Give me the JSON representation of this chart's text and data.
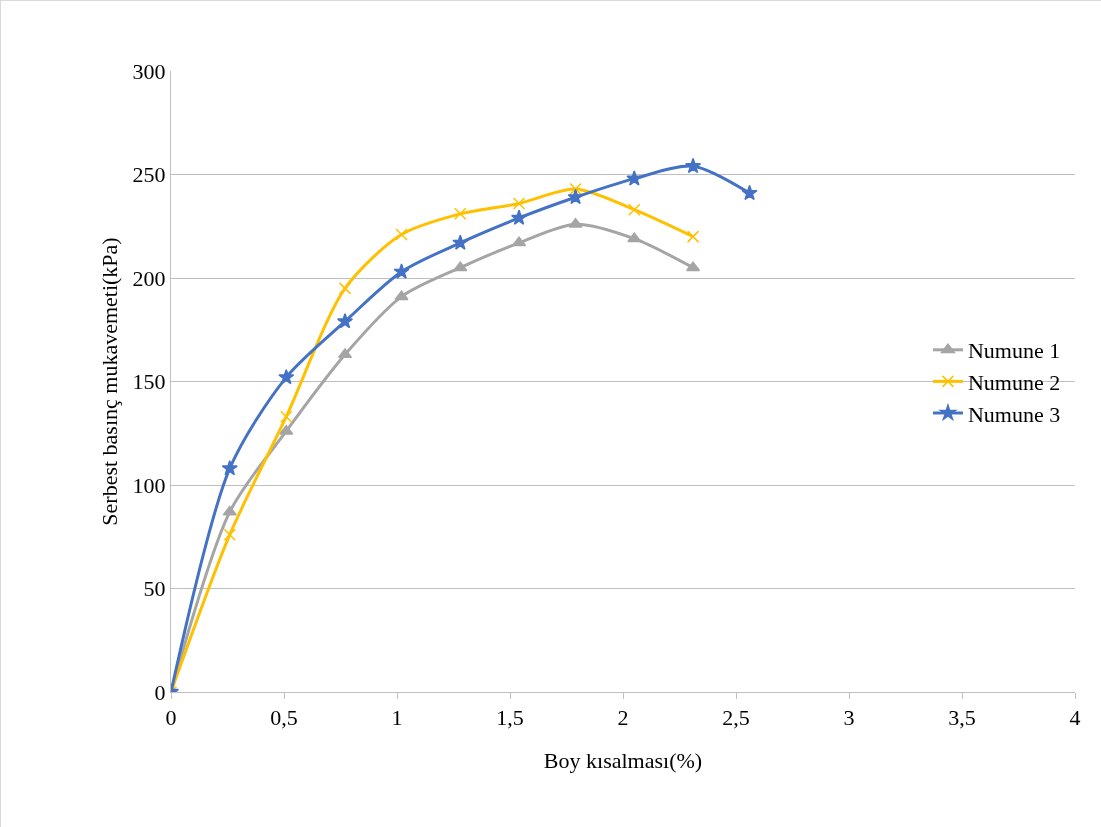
{
  "chart_data": {
    "type": "line",
    "xlabel": "Boy kısalması(%)",
    "ylabel": "Serbest basınç mukavemeti(kPa)",
    "xlim": [
      0,
      4
    ],
    "xticks": [
      0,
      {
        "value": 0.5,
        "label": "0,5"
      },
      1,
      {
        "value": 1.5,
        "label": "1,5"
      },
      2,
      {
        "value": 2.5,
        "label": "2,5"
      },
      3,
      {
        "value": 3.5,
        "label": "3,5"
      },
      4
    ],
    "ylim": [
      0,
      300
    ],
    "yticks": [
      0,
      50,
      100,
      150,
      200,
      250,
      300
    ],
    "grid": "y",
    "legend": "right",
    "series": [
      {
        "name": "Numune 1",
        "color": "#a5a5a5",
        "marker": "triangle",
        "x": [
          0,
          0.26,
          0.51,
          0.77,
          1.02,
          1.28,
          1.54,
          1.79,
          2.05,
          2.31
        ],
        "values": [
          0,
          87,
          126,
          163,
          191,
          205,
          217,
          226,
          219,
          205
        ]
      },
      {
        "name": "Numune 2",
        "color": "#ffc000",
        "marker": "cross",
        "x": [
          0,
          0.26,
          0.51,
          0.77,
          1.02,
          1.28,
          1.54,
          1.79,
          2.05,
          2.31
        ],
        "values": [
          0,
          76,
          133,
          195,
          221,
          231,
          236,
          243,
          233,
          220
        ]
      },
      {
        "name": "Numune 3",
        "color": "#4472c4",
        "marker": "star",
        "x": [
          0,
          0.26,
          0.51,
          0.77,
          1.02,
          1.28,
          1.54,
          1.79,
          2.05,
          2.31,
          2.56
        ],
        "values": [
          0,
          108,
          152,
          179,
          203,
          217,
          229,
          239,
          248,
          254,
          241
        ]
      }
    ]
  }
}
